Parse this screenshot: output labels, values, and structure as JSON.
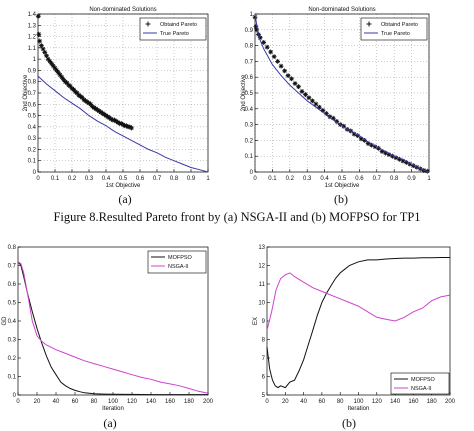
{
  "figure_caption": "Figure 8.Resulted Pareto front by (a) NSGA-II and (b) MOFPSO for TP1",
  "panel_labels": [
    "(a)",
    "(b)",
    "(a)",
    "(b)"
  ],
  "colors": {
    "obtained": "#111111",
    "true_pareto": "#3a3aa8",
    "mofpso": "#111111",
    "nsga": "#cc44cc"
  },
  "chart_data": [
    {
      "type": "scatter",
      "title": "Non-dominated Solutions",
      "xlabel": "1st Objective",
      "ylabel": "2nd Objective",
      "xlim": [
        0,
        1
      ],
      "ylim": [
        0,
        1.4
      ],
      "xticks": [
        0,
        0.1,
        0.2,
        0.3,
        0.4,
        0.5,
        0.6,
        0.7,
        0.8,
        0.9,
        1
      ],
      "yticks": [
        0,
        0.1,
        0.2,
        0.3,
        0.4,
        0.5,
        0.6,
        0.7,
        0.8,
        0.9,
        1,
        1.1,
        1.2,
        1.3,
        1.4
      ],
      "grid": true,
      "legend": "top-right",
      "series": [
        {
          "name": "Obtaind Pareto",
          "style": "markers",
          "points": [
            [
              0.002,
              1.38
            ],
            [
              0.005,
              1.22
            ],
            [
              0.01,
              1.16
            ],
            [
              0.02,
              1.12
            ],
            [
              0.03,
              1.09
            ],
            [
              0.04,
              1.06
            ],
            [
              0.05,
              1.03
            ],
            [
              0.06,
              1.0
            ],
            [
              0.07,
              0.98
            ],
            [
              0.08,
              0.96
            ],
            [
              0.09,
              0.94
            ],
            [
              0.1,
              0.92
            ],
            [
              0.11,
              0.9
            ],
            [
              0.12,
              0.88
            ],
            [
              0.13,
              0.86
            ],
            [
              0.14,
              0.84
            ],
            [
              0.15,
              0.82
            ],
            [
              0.16,
              0.8
            ],
            [
              0.17,
              0.79
            ],
            [
              0.18,
              0.77
            ],
            [
              0.19,
              0.76
            ],
            [
              0.2,
              0.74
            ],
            [
              0.21,
              0.73
            ],
            [
              0.22,
              0.71
            ],
            [
              0.23,
              0.7
            ],
            [
              0.24,
              0.68
            ],
            [
              0.25,
              0.67
            ],
            [
              0.26,
              0.66
            ],
            [
              0.27,
              0.64
            ],
            [
              0.28,
              0.63
            ],
            [
              0.29,
              0.62
            ],
            [
              0.3,
              0.61
            ],
            [
              0.31,
              0.6
            ],
            [
              0.32,
              0.58
            ],
            [
              0.33,
              0.57
            ],
            [
              0.34,
              0.56
            ],
            [
              0.35,
              0.55
            ],
            [
              0.36,
              0.54
            ],
            [
              0.37,
              0.53
            ],
            [
              0.38,
              0.52
            ],
            [
              0.39,
              0.51
            ],
            [
              0.4,
              0.5
            ],
            [
              0.41,
              0.49
            ],
            [
              0.42,
              0.48
            ],
            [
              0.43,
              0.47
            ],
            [
              0.44,
              0.46
            ],
            [
              0.45,
              0.46
            ],
            [
              0.46,
              0.45
            ],
            [
              0.47,
              0.44
            ],
            [
              0.48,
              0.43
            ],
            [
              0.49,
              0.43
            ],
            [
              0.5,
              0.42
            ],
            [
              0.51,
              0.41
            ],
            [
              0.52,
              0.41
            ],
            [
              0.53,
              0.4
            ],
            [
              0.54,
              0.4
            ],
            [
              0.55,
              0.39
            ]
          ]
        },
        {
          "name": "True Pareto",
          "style": "line",
          "points": [
            [
              0,
              0.85
            ],
            [
              0.05,
              0.78
            ],
            [
              0.1,
              0.72
            ],
            [
              0.15,
              0.66
            ],
            [
              0.2,
              0.61
            ],
            [
              0.25,
              0.56
            ],
            [
              0.3,
              0.5
            ],
            [
              0.35,
              0.45
            ],
            [
              0.4,
              0.41
            ],
            [
              0.45,
              0.36
            ],
            [
              0.5,
              0.32
            ],
            [
              0.55,
              0.28
            ],
            [
              0.6,
              0.24
            ],
            [
              0.65,
              0.2
            ],
            [
              0.7,
              0.17
            ],
            [
              0.75,
              0.13
            ],
            [
              0.8,
              0.1
            ],
            [
              0.85,
              0.07
            ],
            [
              0.9,
              0.04
            ],
            [
              0.95,
              0.02
            ],
            [
              1,
              0
            ]
          ]
        }
      ]
    },
    {
      "type": "scatter",
      "title": "Non-dominated Solutions",
      "xlabel": "1st Objective",
      "ylabel": "2nd Objective",
      "xlim": [
        0,
        1
      ],
      "ylim": [
        0,
        1
      ],
      "xticks": [
        0,
        0.1,
        0.2,
        0.3,
        0.4,
        0.5,
        0.6,
        0.7,
        0.8,
        0.9,
        1
      ],
      "yticks": [
        0,
        0.1,
        0.2,
        0.3,
        0.4,
        0.5,
        0.6,
        0.7,
        0.8,
        0.9,
        1
      ],
      "grid": true,
      "legend": "top-right",
      "series": [
        {
          "name": "Obtaind Pareto",
          "style": "markers",
          "points": [
            [
              0,
              0.98
            ],
            [
              0.005,
              0.92
            ],
            [
              0.01,
              0.9
            ],
            [
              0.02,
              0.87
            ],
            [
              0.03,
              0.85
            ],
            [
              0.05,
              0.82
            ],
            [
              0.07,
              0.79
            ],
            [
              0.09,
              0.76
            ],
            [
              0.11,
              0.73
            ],
            [
              0.13,
              0.7
            ],
            [
              0.15,
              0.67
            ],
            [
              0.17,
              0.64
            ],
            [
              0.19,
              0.61
            ],
            [
              0.21,
              0.59
            ],
            [
              0.23,
              0.56
            ],
            [
              0.25,
              0.54
            ],
            [
              0.27,
              0.51
            ],
            [
              0.29,
              0.49
            ],
            [
              0.31,
              0.47
            ],
            [
              0.33,
              0.45
            ],
            [
              0.35,
              0.43
            ],
            [
              0.37,
              0.41
            ],
            [
              0.39,
              0.39
            ],
            [
              0.41,
              0.37
            ],
            [
              0.43,
              0.35
            ],
            [
              0.45,
              0.34
            ],
            [
              0.47,
              0.32
            ],
            [
              0.49,
              0.3
            ],
            [
              0.51,
              0.29
            ],
            [
              0.53,
              0.27
            ],
            [
              0.55,
              0.26
            ],
            [
              0.57,
              0.24
            ],
            [
              0.59,
              0.23
            ],
            [
              0.61,
              0.21
            ],
            [
              0.63,
              0.2
            ],
            [
              0.65,
              0.18
            ],
            [
              0.67,
              0.17
            ],
            [
              0.69,
              0.16
            ],
            [
              0.71,
              0.15
            ],
            [
              0.73,
              0.13
            ],
            [
              0.75,
              0.12
            ],
            [
              0.77,
              0.11
            ],
            [
              0.79,
              0.1
            ],
            [
              0.81,
              0.09
            ],
            [
              0.83,
              0.08
            ],
            [
              0.85,
              0.07
            ],
            [
              0.87,
              0.06
            ],
            [
              0.89,
              0.05
            ],
            [
              0.91,
              0.04
            ],
            [
              0.93,
              0.03
            ],
            [
              0.95,
              0.02
            ],
            [
              0.97,
              0.01
            ],
            [
              0.99,
              0.005
            ]
          ]
        },
        {
          "name": "True Pareto",
          "style": "line",
          "points": [
            [
              0,
              1
            ],
            [
              0.02,
              0.86
            ],
            [
              0.05,
              0.78
            ],
            [
              0.1,
              0.68
            ],
            [
              0.15,
              0.61
            ],
            [
              0.2,
              0.55
            ],
            [
              0.25,
              0.5
            ],
            [
              0.3,
              0.45
            ],
            [
              0.35,
              0.41
            ],
            [
              0.4,
              0.37
            ],
            [
              0.45,
              0.33
            ],
            [
              0.5,
              0.29
            ],
            [
              0.55,
              0.26
            ],
            [
              0.6,
              0.23
            ],
            [
              0.65,
              0.19
            ],
            [
              0.7,
              0.16
            ],
            [
              0.75,
              0.13
            ],
            [
              0.8,
              0.1
            ],
            [
              0.85,
              0.08
            ],
            [
              0.9,
              0.05
            ],
            [
              0.95,
              0.02
            ],
            [
              1,
              0
            ]
          ]
        }
      ]
    },
    {
      "type": "line",
      "title": "",
      "xlabel": "Iteration",
      "ylabel": "GD",
      "xlim": [
        0,
        200
      ],
      "ylim": [
        0,
        0.8
      ],
      "xticks": [
        0,
        20,
        40,
        60,
        80,
        100,
        120,
        140,
        160,
        180,
        200
      ],
      "yticks": [
        0,
        0.1,
        0.2,
        0.3,
        0.4,
        0.5,
        0.6,
        0.7,
        0.8
      ],
      "grid": false,
      "legend": "top-right",
      "series": [
        {
          "name": "MOFPSO",
          "x": [
            0,
            3,
            6,
            10,
            15,
            20,
            25,
            30,
            35,
            40,
            45,
            50,
            55,
            60,
            65,
            70,
            75,
            80,
            90,
            100,
            120,
            140,
            160,
            180,
            200
          ],
          "values": [
            0.72,
            0.7,
            0.64,
            0.55,
            0.45,
            0.36,
            0.28,
            0.21,
            0.15,
            0.11,
            0.07,
            0.05,
            0.035,
            0.025,
            0.018,
            0.012,
            0.009,
            0.007,
            0.005,
            0.004,
            0.003,
            0.002,
            0.002,
            0.002,
            0.002
          ]
        },
        {
          "name": "NSGA-II",
          "x": [
            0,
            3,
            6,
            10,
            15,
            20,
            25,
            30,
            40,
            50,
            60,
            70,
            80,
            90,
            100,
            110,
            120,
            130,
            140,
            150,
            160,
            170,
            180,
            190,
            200
          ],
          "values": [
            0.72,
            0.71,
            0.66,
            0.55,
            0.4,
            0.32,
            0.29,
            0.27,
            0.245,
            0.225,
            0.205,
            0.185,
            0.17,
            0.155,
            0.14,
            0.125,
            0.11,
            0.095,
            0.085,
            0.07,
            0.06,
            0.05,
            0.035,
            0.02,
            0.01
          ]
        }
      ]
    },
    {
      "type": "line",
      "title": "",
      "xlabel": "Iteration",
      "ylabel": "EX",
      "xlim": [
        0,
        200
      ],
      "ylim": [
        5,
        13
      ],
      "xticks": [
        0,
        20,
        40,
        60,
        80,
        100,
        120,
        140,
        160,
        180,
        200
      ],
      "yticks": [
        5,
        6,
        7,
        8,
        9,
        10,
        11,
        12,
        13
      ],
      "grid": false,
      "legend": "bottom-right",
      "series": [
        {
          "name": "MOFPSO",
          "x": [
            0,
            3,
            6,
            9,
            12,
            15,
            20,
            25,
            30,
            35,
            40,
            45,
            50,
            55,
            60,
            65,
            70,
            75,
            80,
            85,
            90,
            95,
            100,
            110,
            120,
            130,
            140,
            150,
            160,
            170,
            180,
            190,
            200
          ],
          "values": [
            7.6,
            6.4,
            5.8,
            5.5,
            5.4,
            5.5,
            5.4,
            5.7,
            5.8,
            6.3,
            6.9,
            7.7,
            8.5,
            9.3,
            10,
            10.5,
            10.9,
            11.3,
            11.6,
            11.8,
            12,
            12.1,
            12.2,
            12.3,
            12.3,
            12.35,
            12.38,
            12.4,
            12.4,
            12.42,
            12.42,
            12.43,
            12.43
          ]
        },
        {
          "name": "NSGA-II",
          "x": [
            0,
            5,
            10,
            15,
            20,
            25,
            30,
            40,
            50,
            60,
            70,
            80,
            90,
            100,
            110,
            120,
            130,
            140,
            150,
            160,
            170,
            180,
            190,
            200
          ],
          "values": [
            8.5,
            9.5,
            10.7,
            11.3,
            11.5,
            11.6,
            11.4,
            11.1,
            10.8,
            10.6,
            10.4,
            10.2,
            10,
            9.8,
            9.5,
            9.2,
            9.1,
            9,
            9.2,
            9.5,
            9.7,
            10.1,
            10.3,
            10.4
          ]
        }
      ]
    }
  ]
}
